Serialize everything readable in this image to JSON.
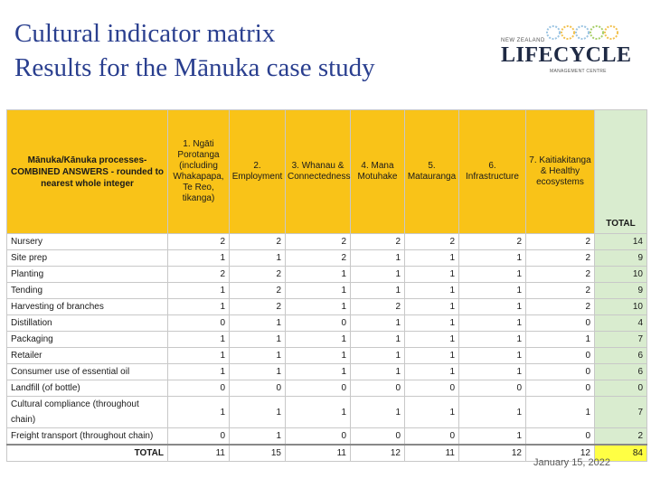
{
  "slide": {
    "title_line1": "Cultural indicator matrix",
    "title_line2": "Results for the Mānuka case study",
    "date": "January 15, 2022"
  },
  "logo": {
    "top": "NEW ZEALAND",
    "main": "LIFECYCLE",
    "sub": "MANAGEMENT CENTRE"
  },
  "table": {
    "corner_header": "Mānuka/Kānuka processes-COMBINED ANSWERS - rounded to nearest whole integer",
    "columns": [
      "1. Ngāti Porotanga (including Whakapapa, Te Reo, tikanga)",
      "2. Employment",
      "3. Whanau & Connectedness",
      "4. Mana Motuhake",
      "5. Matauranga",
      "6. Infrastructure",
      "7. Kaitiakitanga & Healthy ecosystems"
    ],
    "total_header": "TOTAL",
    "rows": [
      {
        "label": "Nursery",
        "values": [
          "2",
          "2",
          "2",
          "2",
          "2",
          "2",
          "2"
        ],
        "total": "14"
      },
      {
        "label": "Site prep",
        "values": [
          "1",
          "1",
          "2",
          "1",
          "1",
          "1",
          "2"
        ],
        "total": "9"
      },
      {
        "label": "Planting",
        "values": [
          "2",
          "2",
          "1",
          "1",
          "1",
          "1",
          "2"
        ],
        "total": "10"
      },
      {
        "label": "Tending",
        "values": [
          "1",
          "2",
          "1",
          "1",
          "1",
          "1",
          "2"
        ],
        "total": "9"
      },
      {
        "label": "Harvesting of branches",
        "values": [
          "1",
          "2",
          "1",
          "2",
          "1",
          "1",
          "2"
        ],
        "total": "10"
      },
      {
        "label": "Distillation",
        "values": [
          "0",
          "1",
          "0",
          "1",
          "1",
          "1",
          "0"
        ],
        "total": "4"
      },
      {
        "label": "Packaging",
        "values": [
          "1",
          "1",
          "1",
          "1",
          "1",
          "1",
          "1"
        ],
        "total": "7"
      },
      {
        "label": "Retailer",
        "values": [
          "1",
          "1",
          "1",
          "1",
          "1",
          "1",
          "0"
        ],
        "total": "6"
      },
      {
        "label": "Consumer use of essential oil",
        "values": [
          "1",
          "1",
          "1",
          "1",
          "1",
          "1",
          "0"
        ],
        "total": "6"
      },
      {
        "label": "Landfill (of bottle)",
        "values": [
          "0",
          "0",
          "0",
          "0",
          "0",
          "0",
          "0"
        ],
        "total": "0"
      },
      {
        "label": "Cultural compliance (throughout chain)",
        "values": [
          "1",
          "1",
          "1",
          "1",
          "1",
          "1",
          "1"
        ],
        "total": "7"
      },
      {
        "label": "Freight transport (throughout chain)",
        "values": [
          "0",
          "1",
          "0",
          "0",
          "0",
          "1",
          "0"
        ],
        "total": "2"
      }
    ],
    "summary": {
      "label": "TOTAL",
      "values": [
        "11",
        "15",
        "11",
        "12",
        "11",
        "12",
        "12"
      ],
      "grand_total": "84"
    }
  }
}
